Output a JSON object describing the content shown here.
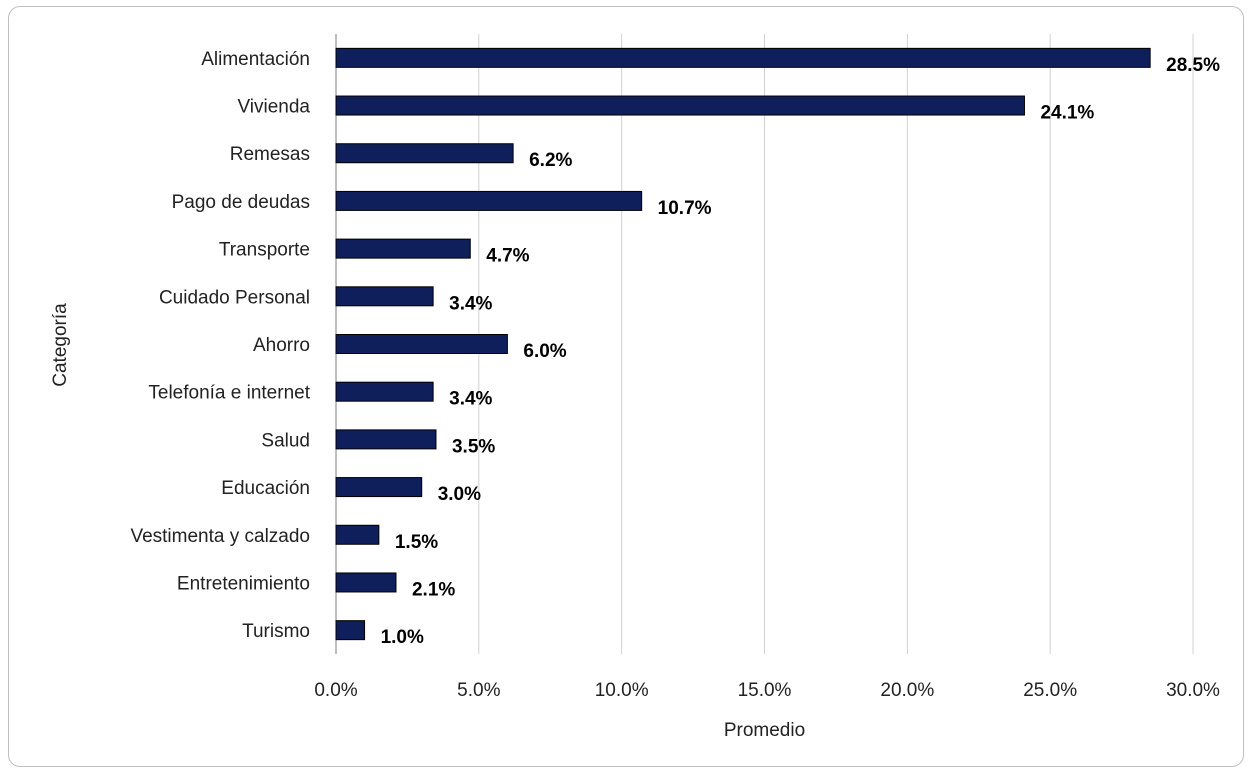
{
  "chart_data": {
    "type": "bar",
    "orientation": "horizontal",
    "title": "",
    "xlabel": "Promedio",
    "ylabel": "Categoría",
    "xlim": [
      0,
      30
    ],
    "x_ticks": [
      "0.0%",
      "5.0%",
      "10.0%",
      "15.0%",
      "20.0%",
      "25.0%",
      "30.0%"
    ],
    "grid": "vertical",
    "legend": "none",
    "bar_color": "#0f1f5c",
    "categories": [
      "Alimentación",
      "Vivienda",
      "Remesas",
      "Pago de deudas",
      "Transporte",
      "Cuidado Personal",
      "Ahorro",
      "Telefonía e internet",
      "Salud",
      "Educación",
      "Vestimenta y calzado",
      "Entretenimiento",
      "Turismo"
    ],
    "values": [
      28.5,
      24.1,
      6.2,
      10.7,
      4.7,
      3.4,
      6.0,
      3.4,
      3.5,
      3.0,
      1.5,
      2.1,
      1.0
    ],
    "data_labels": [
      "28.5%",
      "24.1%",
      "6.2%",
      "10.7%",
      "4.7%",
      "3.4%",
      "6.0%",
      "3.4%",
      "3.5%",
      "3.0%",
      "1.5%",
      "2.1%",
      "1.0%"
    ]
  }
}
